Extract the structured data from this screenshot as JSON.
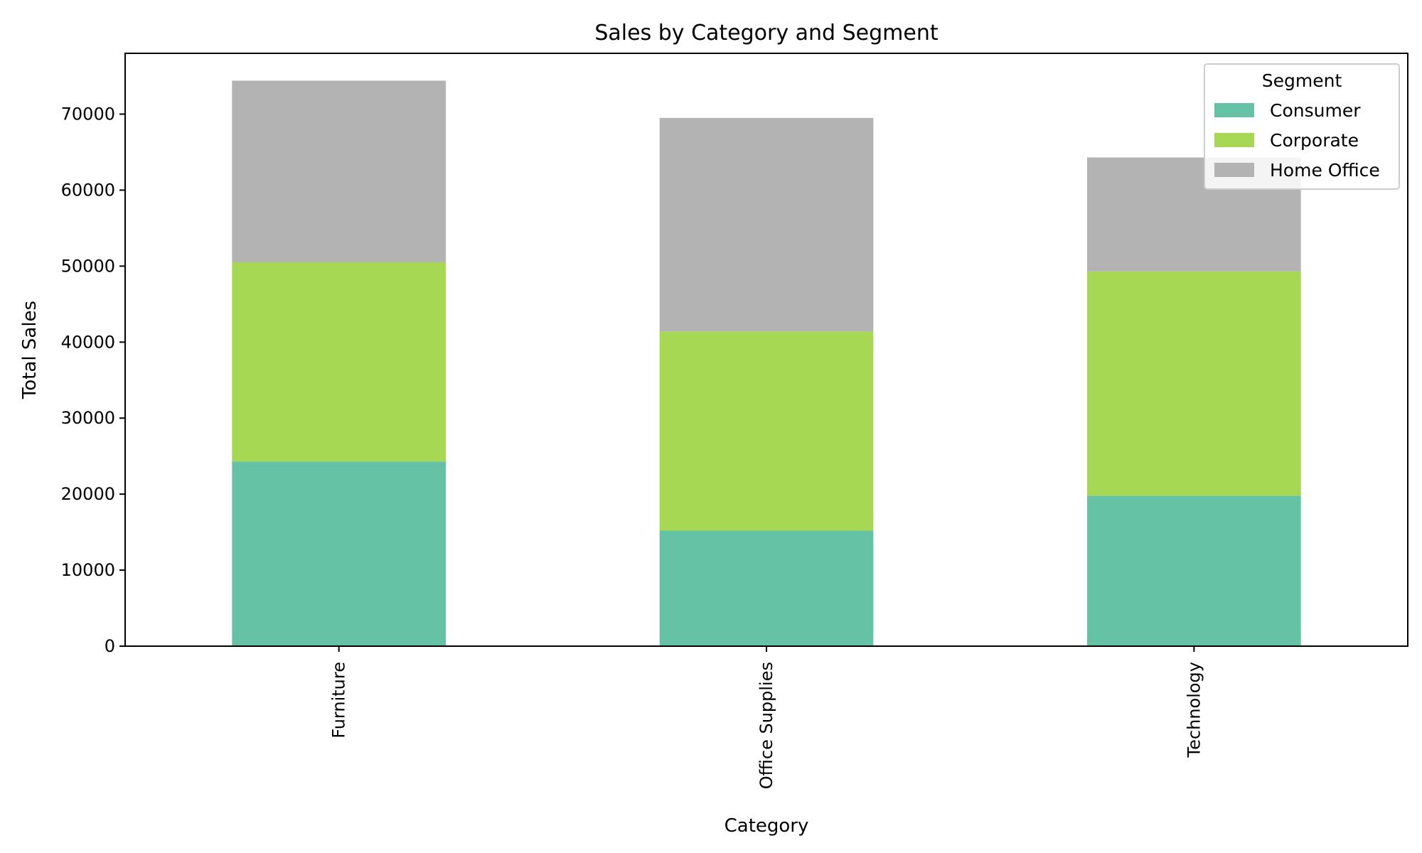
{
  "chart_data": {
    "type": "bar",
    "stacked": true,
    "title": "Sales by Category and Segment",
    "xlabel": "Category",
    "ylabel": "Total Sales",
    "categories": [
      "Furniture",
      "Office Supplies",
      "Technology"
    ],
    "series": [
      {
        "name": "Consumer",
        "color": "#66c2a5",
        "values": [
          24300,
          15200,
          19800
        ]
      },
      {
        "name": "Corporate",
        "color": "#a6d854",
        "values": [
          26200,
          26200,
          29500
        ]
      },
      {
        "name": "Home Office",
        "color": "#b3b3b3",
        "values": [
          23900,
          28100,
          15000
        ]
      }
    ],
    "ylim": [
      0,
      78000
    ],
    "yticks": [
      0,
      10000,
      20000,
      30000,
      40000,
      50000,
      60000,
      70000
    ],
    "grid": false,
    "legend": {
      "title": "Segment",
      "placement": "top-right"
    }
  }
}
